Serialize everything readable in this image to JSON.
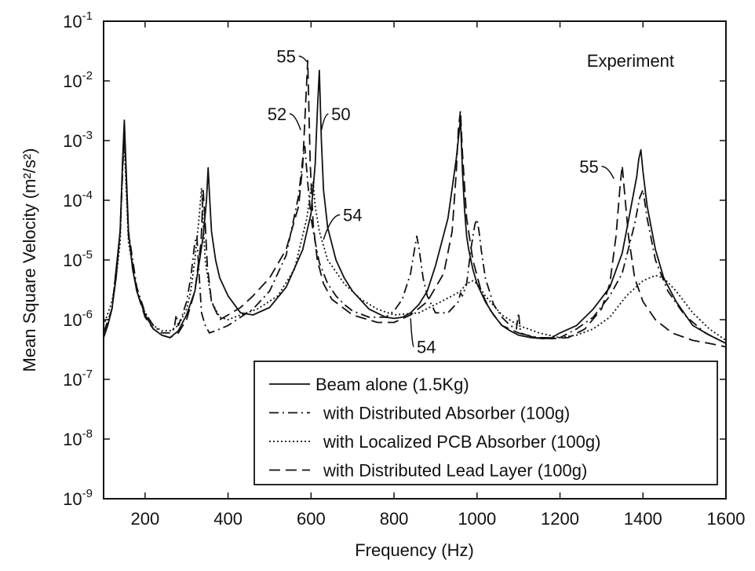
{
  "chart_data": {
    "type": "line",
    "xlabel": "Frequency (Hz)",
    "ylabel": "Mean Square Velocity (m²/s²)",
    "xlim": [
      100,
      1600
    ],
    "ylim": [
      1e-09,
      0.1
    ],
    "yscale": "log",
    "grid": false,
    "legend_position": "bottom-right",
    "x_ticks": [
      200,
      400,
      600,
      800,
      1000,
      1200,
      1400,
      1600
    ],
    "x_tick_labels": [
      "200",
      "400",
      "600",
      "800",
      "1000",
      "1200",
      "1400",
      "1600"
    ],
    "y_tick_exponents": [
      -9,
      -8,
      -7,
      -6,
      -5,
      -4,
      -3,
      -2,
      -1
    ],
    "y_tick_base": "10",
    "annotations": [
      {
        "text": "Experiment",
        "x": 1370,
        "y": 0.022
      },
      {
        "text": "55",
        "x": 540,
        "y": 0.026,
        "arrow_to": [
          590,
          0.021
        ]
      },
      {
        "text": "52",
        "x": 518,
        "y": 0.0028,
        "arrow_to": [
          575,
          0.0015
        ]
      },
      {
        "text": "50",
        "x": 672,
        "y": 0.0028,
        "arrow_to": [
          625,
          0.0015
        ]
      },
      {
        "text": "54",
        "x": 700,
        "y": 5.7e-05,
        "arrow_to": [
          630,
          2.2e-05
        ]
      },
      {
        "text": "54",
        "x": 878,
        "y": 3.5e-07,
        "arrow_to": [
          840,
          1.05e-06
        ]
      },
      {
        "text": "55",
        "x": 1270,
        "y": 0.00037,
        "arrow_to": [
          1330,
          0.00023
        ]
      }
    ],
    "series": [
      {
        "name": "Beam alone (1.5Kg)",
        "dash": "solid",
        "x": [
          100,
          110,
          120,
          130,
          140,
          146,
          150,
          154,
          160,
          170,
          180,
          200,
          220,
          240,
          260,
          280,
          300,
          320,
          340,
          348,
          352,
          356,
          360,
          370,
          380,
          400,
          430,
          460,
          500,
          540,
          580,
          600,
          610,
          615,
          620,
          625,
          630,
          640,
          660,
          680,
          700,
          740,
          780,
          800,
          820,
          840,
          860,
          880,
          900,
          930,
          950,
          960,
          965,
          970,
          975,
          980,
          990,
          1000,
          1020,
          1040,
          1060,
          1080,
          1100,
          1130,
          1160,
          1180,
          1200,
          1240,
          1280,
          1320,
          1350,
          1370,
          1385,
          1390,
          1395,
          1400,
          1410,
          1430,
          1450,
          1480,
          1520,
          1560,
          1600
        ],
        "y": [
          5e-07,
          8e-07,
          1.5e-06,
          5e-06,
          3e-05,
          0.0005,
          0.0022,
          0.0004,
          3e-05,
          7e-06,
          3e-06,
          1.2e-06,
          7e-07,
          5.5e-07,
          5e-07,
          6.5e-07,
          1.2e-06,
          3e-06,
          2.5e-05,
          0.0001,
          0.00035,
          0.0001,
          3e-05,
          1e-05,
          5e-06,
          2.5e-06,
          1.3e-06,
          1.2e-06,
          1.6e-06,
          3.5e-06,
          1.5e-05,
          6e-05,
          0.0004,
          0.003,
          0.015,
          0.001,
          0.00015,
          3.5e-05,
          1e-05,
          5e-06,
          3e-06,
          1.5e-06,
          1.1e-06,
          1.05e-06,
          1.1e-06,
          1.3e-06,
          1.8e-06,
          3e-06,
          8e-06,
          5e-05,
          0.0005,
          0.0023,
          0.0003,
          7e-05,
          2.5e-05,
          1.5e-05,
          7e-06,
          4e-06,
          2e-06,
          1.2e-06,
          8e-07,
          6.5e-07,
          5.5e-07,
          5e-07,
          4.8e-07,
          5e-07,
          6e-07,
          8e-07,
          1.5e-06,
          3.5e-06,
          1.3e-05,
          7e-05,
          0.00025,
          0.0005,
          0.0007,
          0.0003,
          8e-05,
          1.5e-05,
          5e-06,
          2e-06,
          8e-07,
          5.5e-07,
          4e-07
        ]
      },
      {
        "name": "with Distributed Absorber (100g)",
        "dash": "dashdot",
        "x": [
          100,
          120,
          140,
          146,
          150,
          154,
          160,
          180,
          200,
          220,
          240,
          260,
          270,
          275,
          280,
          290,
          300,
          310,
          320,
          325,
          330,
          336,
          345,
          355,
          370,
          400,
          430,
          460,
          500,
          540,
          570,
          580,
          585,
          592,
          600,
          610,
          620,
          640,
          660,
          680,
          700,
          740,
          780,
          800,
          820,
          840,
          850,
          855,
          860,
          870,
          880,
          900,
          930,
          955,
          960,
          965,
          975,
          985,
          995,
          1000,
          1005,
          1010,
          1020,
          1040,
          1060,
          1080,
          1095,
          1100,
          1105,
          1120,
          1150,
          1180,
          1200,
          1240,
          1280,
          1320,
          1350,
          1380,
          1392,
          1400,
          1410,
          1430,
          1460,
          1500,
          1550,
          1600
        ],
        "y": [
          6e-07,
          1.5e-06,
          3e-05,
          0.0003,
          0.0015,
          0.0003,
          3e-05,
          3.5e-06,
          1.3e-06,
          8e-07,
          6e-07,
          6e-07,
          7e-07,
          1.2e-06,
          8e-07,
          1.2e-06,
          2e-06,
          5e-06,
          2e-05,
          2.5e-05,
          6e-06,
          1.3e-06,
          8e-07,
          6e-07,
          6.5e-07,
          8e-07,
          1.1e-06,
          1.5e-06,
          3e-06,
          1.2e-05,
          0.00012,
          0.0005,
          0.0008,
          0.0002,
          5e-05,
          2e-05,
          9e-06,
          4e-06,
          2.5e-06,
          1.8e-06,
          1.4e-06,
          1.1e-06,
          1.1e-06,
          1.4e-06,
          2.2e-06,
          6e-06,
          1.6e-05,
          2.5e-05,
          1.6e-05,
          5e-06,
          2.5e-06,
          1.3e-06,
          1.3e-06,
          2e-06,
          2.8e-06,
          2.5e-06,
          4e-06,
          1.5e-05,
          4e-05,
          4.8e-05,
          3e-05,
          1.5e-05,
          5e-06,
          1.8e-06,
          1.1e-06,
          8e-07,
          7e-07,
          1.3e-06,
          6e-07,
          5.5e-07,
          5e-07,
          5e-07,
          5e-07,
          7e-07,
          1.1e-06,
          2.5e-06,
          6e-06,
          4e-05,
          0.00011,
          0.00015,
          5e-05,
          1e-05,
          3e-06,
          1.2e-06,
          6e-07,
          4e-07
        ]
      },
      {
        "name": "with Localized PCB Absorber (100g)",
        "dash": "dotted",
        "x": [
          100,
          120,
          130,
          140,
          146,
          150,
          154,
          160,
          180,
          200,
          220,
          240,
          260,
          280,
          300,
          310,
          320,
          330,
          336,
          340,
          345,
          360,
          380,
          400,
          430,
          470,
          520,
          560,
          590,
          600,
          605,
          610,
          620,
          640,
          680,
          720,
          760,
          800,
          860,
          900,
          940,
          960,
          975,
          990,
          1000,
          1020,
          1060,
          1100,
          1150,
          1200,
          1240,
          1280,
          1320,
          1360,
          1400,
          1430,
          1450,
          1480,
          1520,
          1560,
          1600
        ],
        "y": [
          8e-07,
          2e-06,
          5e-06,
          2e-05,
          0.0005,
          0.0009,
          0.0002,
          2e-05,
          3e-06,
          1.3e-06,
          8e-07,
          6.5e-07,
          6.5e-07,
          8e-07,
          1.5e-06,
          3e-06,
          1e-05,
          5e-05,
          0.00016,
          4e-05,
          1e-05,
          2e-06,
          1.1e-06,
          1e-06,
          1.2e-06,
          1.5e-06,
          2.5e-06,
          7e-06,
          5e-05,
          0.00016,
          0.0002,
          8e-05,
          3e-05,
          1e-05,
          4e-06,
          2.2e-06,
          1.5e-06,
          1.2e-06,
          1.3e-06,
          1.8e-06,
          2.5e-06,
          3e-06,
          4e-06,
          4.5e-06,
          4e-06,
          2.5e-06,
          1.2e-06,
          8e-07,
          6e-07,
          5e-07,
          5.5e-07,
          7e-07,
          1.1e-06,
          2.5e-06,
          4.5e-06,
          5.5e-06,
          5e-06,
          3e-06,
          1.3e-06,
          7e-07,
          4.5e-07
        ]
      },
      {
        "name": "with Distributed Lead Layer (100g)",
        "dash": "dashed",
        "x": [
          100,
          120,
          140,
          146,
          150,
          154,
          160,
          180,
          200,
          220,
          240,
          260,
          280,
          300,
          320,
          335,
          340,
          345,
          350,
          360,
          380,
          400,
          430,
          460,
          500,
          540,
          570,
          580,
          586,
          592,
          598,
          605,
          615,
          630,
          650,
          700,
          760,
          800,
          840,
          880,
          920,
          940,
          950,
          955,
          960,
          965,
          975,
          990,
          1010,
          1030,
          1060,
          1100,
          1140,
          1180,
          1220,
          1260,
          1300,
          1320,
          1335,
          1345,
          1350,
          1355,
          1365,
          1380,
          1400,
          1430,
          1470,
          1520,
          1560,
          1600
        ],
        "y": [
          6e-07,
          1.5e-06,
          3e-05,
          0.0004,
          0.0018,
          0.0003,
          2.5e-05,
          3e-06,
          1.1e-06,
          7e-07,
          5.5e-07,
          5e-07,
          6e-07,
          1e-06,
          3e-06,
          2e-05,
          0.00015,
          4e-05,
          8e-06,
          2e-06,
          1e-06,
          1.2e-06,
          1.6e-06,
          2.5e-06,
          5e-06,
          1.5e-05,
          8e-05,
          0.0004,
          0.003,
          0.022,
          0.0004,
          4e-05,
          1e-05,
          4e-06,
          2.2e-06,
          1.2e-06,
          9e-07,
          9e-07,
          1.2e-06,
          2e-06,
          6e-06,
          3e-05,
          0.0003,
          0.0015,
          0.0032,
          0.0006,
          5e-05,
          1e-05,
          3e-06,
          1.5e-06,
          8e-07,
          6e-07,
          5e-07,
          4.8e-07,
          5e-07,
          7e-07,
          1.5e-06,
          4e-06,
          2.5e-05,
          0.00018,
          0.00038,
          0.00015,
          2.5e-05,
          5e-06,
          2e-06,
          1e-06,
          6e-07,
          4.5e-07,
          4e-07,
          3.5e-07
        ]
      }
    ]
  }
}
